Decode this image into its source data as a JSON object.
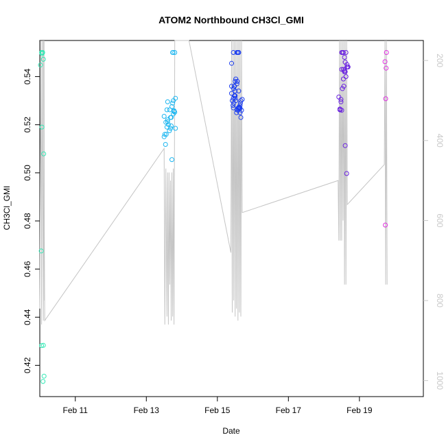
{
  "chart_data": {
    "type": "scatter",
    "title": "ATOM2 Northbound CH3Cl_GMI",
    "xlabel": "Date",
    "ylabel": "CH3Cl_GMI",
    "xlim": [
      10.0,
      20.8
    ],
    "ylim": [
      0.407,
      0.555
    ],
    "y2lim": [
      1040,
      150
    ],
    "x_ticks": [
      {
        "value": 11,
        "label": "Feb 11"
      },
      {
        "value": 13,
        "label": "Feb 13"
      },
      {
        "value": 15,
        "label": "Feb 15"
      },
      {
        "value": 17,
        "label": "Feb 17"
      },
      {
        "value": 19,
        "label": "Feb 19"
      }
    ],
    "y_ticks": [
      {
        "value": 0.42,
        "label": "0.42"
      },
      {
        "value": 0.44,
        "label": "0.44"
      },
      {
        "value": 0.46,
        "label": "0.46"
      },
      {
        "value": 0.48,
        "label": "0.48"
      },
      {
        "value": 0.5,
        "label": "0.50"
      },
      {
        "value": 0.52,
        "label": "0.52"
      },
      {
        "value": 0.54,
        "label": "0.54"
      }
    ],
    "y2_ticks": [
      {
        "value": 200,
        "label": "200"
      },
      {
        "value": 400,
        "label": "400"
      },
      {
        "value": 600,
        "label": "600"
      },
      {
        "value": 800,
        "label": "800"
      },
      {
        "value": 1000,
        "label": "1000"
      }
    ],
    "grid": false,
    "point_series": [
      {
        "color": "#2fe8b4",
        "x": [
          10.08,
          10.08,
          10.02,
          10.05,
          10.1,
          10.06,
          10.11,
          10.04,
          10.1,
          10.05,
          10.09,
          10.12,
          10.06
        ],
        "y": [
          0.55,
          0.55,
          0.5448,
          0.55,
          0.5472,
          0.519,
          0.5079,
          0.4675,
          0.4283,
          0.4282,
          0.4133,
          0.4155,
          0.5495
        ]
      },
      {
        "color": "#1cb6f0",
        "x": [
          13.5,
          13.55,
          13.6,
          13.58,
          13.65,
          13.7,
          13.75,
          13.72,
          13.8,
          13.68,
          13.62,
          13.56,
          13.5,
          13.52,
          13.54,
          13.6,
          13.7,
          13.78,
          13.82,
          13.82,
          13.76,
          13.74,
          13.66,
          13.72,
          13.76,
          13.78,
          13.8,
          13.74,
          13.68,
          13.6,
          13.58
        ],
        "y": [
          0.5235,
          0.521,
          0.5295,
          0.519,
          0.5175,
          0.523,
          0.55,
          0.5055,
          0.55,
          0.5185,
          0.52,
          0.516,
          0.515,
          0.516,
          0.5118,
          0.5212,
          0.5195,
          0.5255,
          0.531,
          0.5185,
          0.53,
          0.529,
          0.5262,
          0.5275,
          0.5245,
          0.5258,
          0.5252,
          0.55,
          0.523,
          0.522,
          0.5262
        ]
      },
      {
        "color": "#1a3cf0",
        "x": [
          15.4,
          15.45,
          15.48,
          15.5,
          15.52,
          15.55,
          15.58,
          15.6,
          15.62,
          15.64,
          15.66,
          15.68,
          15.5,
          15.45,
          15.42,
          15.4,
          15.46,
          15.55,
          15.6,
          15.64,
          15.62,
          15.58,
          15.55,
          15.52,
          15.5,
          15.48,
          15.46,
          15.44,
          15.6,
          15.62,
          15.64,
          15.66,
          15.58,
          15.54,
          15.5,
          15.48,
          15.56,
          15.6,
          15.65,
          15.7,
          15.5,
          15.45,
          15.4
        ],
        "y": [
          0.5455,
          0.55,
          0.536,
          0.538,
          0.539,
          0.55,
          0.55,
          0.55,
          0.527,
          0.525,
          0.523,
          0.526,
          0.532,
          0.531,
          0.53,
          0.533,
          0.535,
          0.537,
          0.534,
          0.528,
          0.5272,
          0.5268,
          0.5262,
          0.53,
          0.531,
          0.532,
          0.529,
          0.528,
          0.5272,
          0.527,
          0.5268,
          0.53,
          0.526,
          0.525,
          0.534,
          0.536,
          0.538,
          0.527,
          0.529,
          0.5305,
          0.532,
          0.527,
          0.536
        ]
      },
      {
        "color": "#6a22e0",
        "x": [
          18.42,
          18.45,
          18.48,
          18.5,
          18.52,
          18.55,
          18.58,
          18.6,
          18.62,
          18.65,
          18.68,
          18.45,
          18.5,
          18.55,
          18.6,
          18.65,
          18.62,
          18.58,
          18.56,
          18.52,
          18.5,
          18.48,
          18.46,
          18.6,
          18.64,
          18.66,
          18.58,
          18.55
        ],
        "y": [
          0.5315,
          0.5262,
          0.5305,
          0.55,
          0.55,
          0.55,
          0.548,
          0.546,
          0.55,
          0.545,
          0.544,
          0.5265,
          0.543,
          0.539,
          0.542,
          0.544,
          0.54,
          0.542,
          0.536,
          0.535,
          0.526,
          0.5295,
          0.5262,
          0.5113,
          0.4997,
          0.544,
          0.5425,
          0.543
        ]
      },
      {
        "color": "#e02fe0",
        "x": [
          19.72,
          19.75,
          19.74,
          19.76,
          19.73
        ],
        "y": [
          0.5462,
          0.5435,
          0.5308,
          0.55,
          0.4783
        ]
      }
    ],
    "altitude_trace": [
      [
        10.0,
        820
      ],
      [
        10.03,
        150
      ],
      [
        10.05,
        860
      ],
      [
        10.07,
        150
      ],
      [
        10.1,
        850
      ],
      [
        10.12,
        150
      ],
      [
        10.13,
        800
      ],
      [
        10.1,
        150
      ],
      [
        10.14,
        850
      ],
      [
        13.5,
        420
      ],
      [
        13.52,
        860
      ],
      [
        13.55,
        470
      ],
      [
        13.58,
        840
      ],
      [
        13.6,
        480
      ],
      [
        13.62,
        860
      ],
      [
        13.64,
        480
      ],
      [
        13.66,
        760
      ],
      [
        13.68,
        500
      ],
      [
        13.7,
        850
      ],
      [
        13.72,
        480
      ],
      [
        13.74,
        840
      ],
      [
        13.76,
        470
      ],
      [
        13.78,
        860
      ],
      [
        13.8,
        150
      ],
      [
        14.2,
        150
      ],
      [
        15.38,
        680
      ],
      [
        15.4,
        150
      ],
      [
        15.42,
        830
      ],
      [
        15.44,
        150
      ],
      [
        15.46,
        800
      ],
      [
        15.48,
        150
      ],
      [
        15.5,
        840
      ],
      [
        15.52,
        150
      ],
      [
        15.54,
        820
      ],
      [
        15.56,
        150
      ],
      [
        15.58,
        850
      ],
      [
        15.6,
        150
      ],
      [
        15.62,
        830
      ],
      [
        15.64,
        150
      ],
      [
        15.66,
        840
      ],
      [
        15.68,
        150
      ],
      [
        15.7,
        580
      ],
      [
        18.4,
        500
      ],
      [
        18.42,
        650
      ],
      [
        18.44,
        150
      ],
      [
        18.46,
        650
      ],
      [
        18.48,
        150
      ],
      [
        18.5,
        650
      ],
      [
        18.52,
        150
      ],
      [
        18.54,
        600
      ],
      [
        18.56,
        150
      ],
      [
        18.58,
        760
      ],
      [
        18.6,
        150
      ],
      [
        18.62,
        760
      ],
      [
        18.64,
        150
      ],
      [
        18.66,
        560
      ],
      [
        19.7,
        460
      ],
      [
        19.72,
        150
      ],
      [
        19.74,
        760
      ],
      [
        19.76,
        150
      ],
      [
        19.78,
        760
      ]
    ]
  }
}
